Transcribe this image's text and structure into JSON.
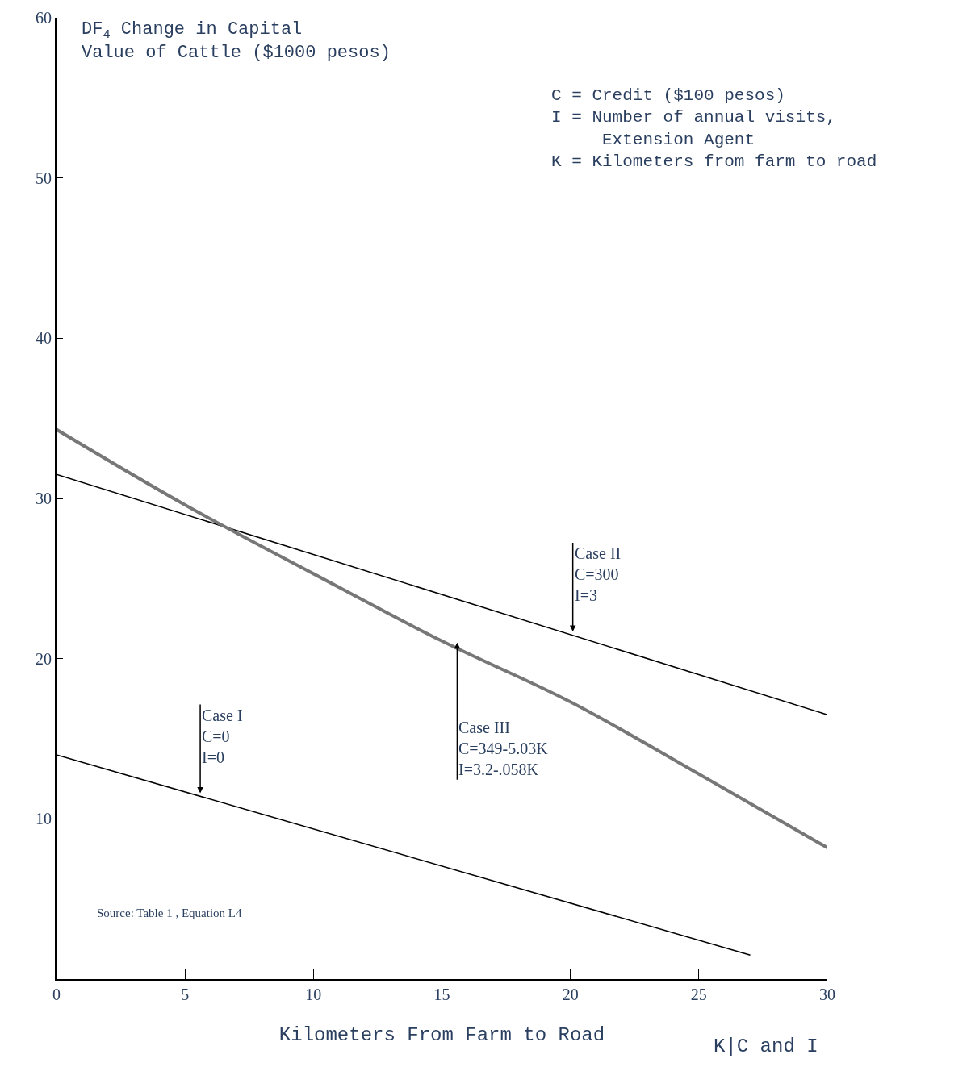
{
  "chart_data": {
    "type": "line",
    "ylabel": "DF$_{4}$ Change in Capital\nValue of Cattle ($1000 pesos)",
    "xlabel": "Kilometers From Farm to Road",
    "x": [
      0,
      5,
      10,
      15,
      20,
      25,
      30
    ],
    "series": [
      {
        "color": "#000000",
        "x": [
          0,
          27
        ],
        "values": [
          14,
          1.5
        ]
      },
      {
        "color": "#000000",
        "x": [
          0,
          30
        ],
        "values": [
          31.5,
          16.5
        ]
      },
      {
        "color": "#777777",
        "values": [
          34.3,
          29.6,
          25.3,
          21.1,
          17.3,
          12.8,
          8.2
        ]
      }
    ],
    "xlim": [
      0,
      30
    ],
    "xticks": [
      0,
      5,
      10,
      15,
      20,
      25,
      30
    ],
    "ylim": [
      0,
      60
    ],
    "yticks": [
      10,
      20,
      30,
      40,
      50,
      60
    ],
    "legend": false,
    "annotations": [
      {
        "text": "Case I\nC=0\nI=0",
        "x": 5.5,
        "y": 11.6
      },
      {
        "text": "Case II\nC=300\nI=3",
        "x": 20,
        "y": 21.7
      },
      {
        "text": "Case III\nC=349-5.03K\nI=3.2-.058K",
        "x": 15.5,
        "y": 21
      },
      "C = Credit ($100 pesos)\nI = Number of annual visits,\n     Extension Agent\nK = Kilometers from farm to road",
      "Source: Table 1 , Equation L4",
      "K|C and I"
    ]
  }
}
